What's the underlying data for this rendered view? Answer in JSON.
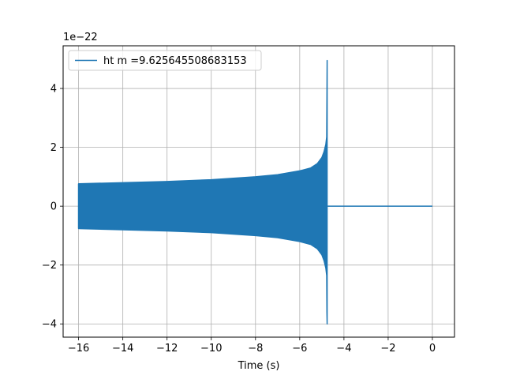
{
  "chart_data": {
    "type": "line",
    "title": "",
    "xlabel": "Time (s)",
    "ylabel": "",
    "y_offset_label": "1e−22",
    "xlim": [
      -16.7,
      1.0
    ],
    "ylim": [
      -4.45,
      5.45
    ],
    "x_ticks": [
      -16,
      -14,
      -12,
      -10,
      -8,
      -6,
      -4,
      -2,
      0
    ],
    "x_tick_labels": [
      "−16",
      "−14",
      "−12",
      "−10",
      "−8",
      "−6",
      "−4",
      "−2",
      "0"
    ],
    "y_ticks": [
      -4,
      -2,
      0,
      2,
      4
    ],
    "y_tick_labels": [
      "−4",
      "−2",
      "0",
      "2",
      "4"
    ],
    "grid": true,
    "legend_position": "upper-left",
    "series": [
      {
        "name": "ht m =9.625645508683153",
        "color": "#1f77b4",
        "envelope_upper": [
          [
            -16.0,
            0.76
          ],
          [
            -14.0,
            0.8
          ],
          [
            -12.0,
            0.84
          ],
          [
            -10.0,
            0.9
          ],
          [
            -8.0,
            1.0
          ],
          [
            -7.0,
            1.07
          ],
          [
            -6.0,
            1.2
          ],
          [
            -5.5,
            1.3
          ],
          [
            -5.2,
            1.45
          ],
          [
            -5.0,
            1.65
          ],
          [
            -4.9,
            1.85
          ],
          [
            -4.82,
            2.1
          ],
          [
            -4.78,
            2.35
          ],
          [
            -4.77,
            3.6
          ],
          [
            -4.76,
            4.95
          ]
        ],
        "envelope_lower": [
          [
            -16.0,
            -0.76
          ],
          [
            -14.0,
            -0.8
          ],
          [
            -12.0,
            -0.84
          ],
          [
            -10.0,
            -0.9
          ],
          [
            -8.0,
            -1.0
          ],
          [
            -7.0,
            -1.07
          ],
          [
            -6.0,
            -1.2
          ],
          [
            -5.5,
            -1.3
          ],
          [
            -5.2,
            -1.45
          ],
          [
            -5.0,
            -1.65
          ],
          [
            -4.9,
            -1.85
          ],
          [
            -4.82,
            -2.1
          ],
          [
            -4.78,
            -2.35
          ],
          [
            -4.77,
            -3.6
          ],
          [
            -4.76,
            -4.0
          ]
        ],
        "flat_segment": [
          [
            -4.74,
            0.0
          ],
          [
            0.0,
            0.0
          ]
        ]
      }
    ]
  }
}
